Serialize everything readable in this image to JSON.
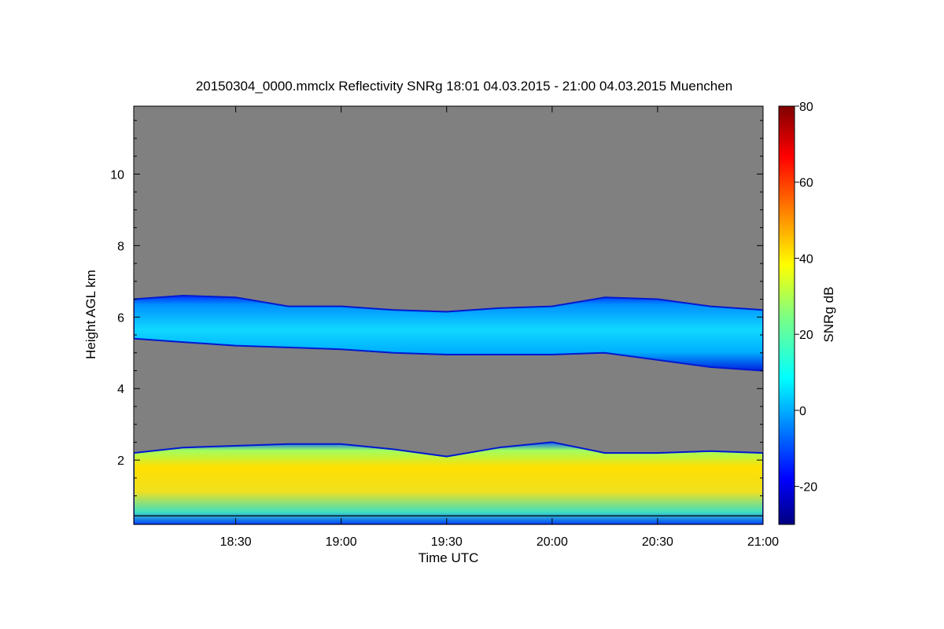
{
  "chart_data": {
    "type": "heatmap",
    "title": "20150304_0000.mmclx Reflectivity SNRg   18:01 04.03.2015 - 21:00 04.03.2015 Muenchen",
    "xlabel": "Time UTC",
    "ylabel": "Height AGL km",
    "colorbar_label": "SNRg dB",
    "xlim": [
      "18:01",
      "21:00"
    ],
    "ylim": [
      0.2,
      11.9
    ],
    "colorbar_range": [
      -30,
      80
    ],
    "x_ticks": [
      "18:30",
      "19:00",
      "19:30",
      "20:00",
      "20:30",
      "21:00"
    ],
    "y_ticks": [
      "2",
      "4",
      "6",
      "8",
      "10"
    ],
    "colorbar_ticks": [
      "-20",
      "0",
      "20",
      "40",
      "60",
      "80"
    ],
    "background_color": "#808080",
    "layers": [
      {
        "name": "upper cloud layer",
        "time": [
          "18:01",
          "18:15",
          "18:30",
          "18:45",
          "19:00",
          "19:15",
          "19:30",
          "19:45",
          "20:00",
          "20:15",
          "20:30",
          "20:45",
          "21:00"
        ],
        "top_km": [
          6.5,
          6.6,
          6.55,
          6.3,
          6.3,
          6.2,
          6.15,
          6.25,
          6.3,
          6.55,
          6.5,
          6.3,
          6.2
        ],
        "base_km": [
          5.4,
          5.3,
          5.2,
          5.15,
          5.1,
          5.0,
          4.95,
          4.95,
          4.95,
          5.0,
          4.8,
          4.6,
          4.5
        ],
        "typical_snr_db": 5
      },
      {
        "name": "lower cloud layer",
        "time": [
          "18:01",
          "18:15",
          "18:30",
          "18:45",
          "19:00",
          "19:15",
          "19:30",
          "19:45",
          "20:00",
          "20:15",
          "20:30",
          "20:45",
          "21:00"
        ],
        "top_km": [
          2.2,
          2.35,
          2.4,
          2.45,
          2.45,
          2.3,
          2.1,
          2.35,
          2.5,
          2.2,
          2.2,
          2.25,
          2.2
        ],
        "base_km": [
          0.2,
          0.2,
          0.2,
          0.2,
          0.2,
          0.2,
          0.2,
          0.2,
          0.2,
          0.2,
          0.2,
          0.2,
          0.2
        ],
        "typical_snr_db": 35
      }
    ]
  }
}
